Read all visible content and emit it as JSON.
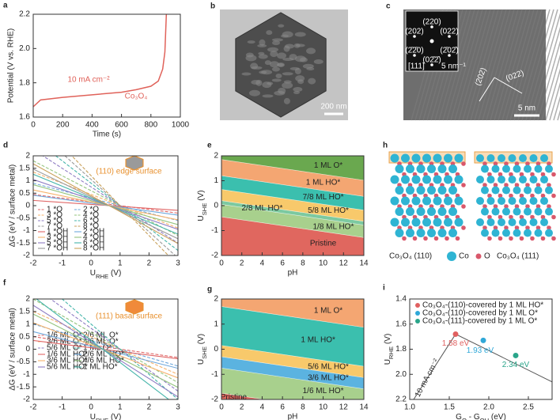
{
  "panel_labels": [
    "a",
    "b",
    "c",
    "d",
    "e",
    "f",
    "g",
    "h",
    "i"
  ],
  "images": {
    "b": {
      "scale_bar": "200 nm"
    },
    "c": {
      "zone_axis": "[111]",
      "inset_spots": [
        "(220)",
        "(022)",
        "(202)",
        "(2̄02̄)",
        "(02̄2̄)",
        "(2̄2̄0)"
      ],
      "inset_scale": "5 nm⁻¹",
      "planes": [
        "(202)",
        "(022)"
      ],
      "scale_bar": "5 nm"
    },
    "h": {
      "left_label": "Co₃O₄ (110)",
      "legend": [
        "Co",
        "O"
      ],
      "right_label": "Co₃O₄ (111)"
    }
  },
  "chart_data": [
    {
      "type": "line",
      "xlabel": "Time (s)",
      "ylabel": "Potential (V vs. RHE)",
      "x": [
        0,
        50,
        200,
        400,
        600,
        700,
        800,
        850,
        880,
        895,
        905
      ],
      "values": [
        1.66,
        1.7,
        1.715,
        1.73,
        1.745,
        1.76,
        1.78,
        1.81,
        1.88,
        1.98,
        2.2
      ],
      "color": "#e0625a",
      "xlim": [
        0,
        1000
      ],
      "ylim": [
        1.6,
        2.2
      ],
      "xticks": [
        0,
        200,
        400,
        600,
        800,
        1000
      ],
      "yticks": [
        1.6,
        1.8,
        {
          "value": 2,
          "label": "2.0"
        },
        2.2
      ],
      "annotations": [
        "10 mA cm⁻²",
        "Co₃O₄"
      ]
    },
    {
      "type": "multiline",
      "xlabel": [
        "U",
        "RHE",
        " (V)"
      ],
      "ylabel": "ΔG (eV / surface metal)",
      "annotations": [
        "(110) edge surface"
      ],
      "x": [
        -2,
        3
      ],
      "series": [
        {
          "name": "1 *O",
          "color": "#e06666",
          "style": "dashed",
          "values": [
            0.45,
            -0.3
          ]
        },
        {
          "name": "2 *O",
          "color": "#6fa8dc",
          "style": "dashed",
          "values": [
            0.9,
            -0.6
          ]
        },
        {
          "name": "3 *O",
          "color": "#f6b26b",
          "style": "dashed",
          "values": [
            1.35,
            -0.9
          ]
        },
        {
          "name": "4 *O",
          "color": "#93c47d",
          "style": "dashed",
          "values": [
            1.8,
            -1.2
          ]
        },
        {
          "name": "5 *O",
          "color": "#8e7cc3",
          "style": "dashed",
          "values": [
            2.25,
            -1.5
          ]
        },
        {
          "name": "6 *O",
          "color": "#45b5aa",
          "style": "dashed",
          "values": [
            2.7,
            -1.8
          ]
        },
        {
          "name": "7 *O",
          "color": "#999999",
          "style": "dashed",
          "values": [
            3.15,
            -2.1
          ]
        },
        {
          "name": "8 *O",
          "color": "#c9a15b",
          "style": "dashed",
          "values": [
            3.6,
            -2.4
          ]
        },
        {
          "name": "1 *OH",
          "color": "#e06666",
          "style": "solid",
          "values": [
            0.21,
            -0.19
          ]
        },
        {
          "name": "2 *OH",
          "color": "#6fa8dc",
          "style": "solid",
          "values": [
            0.42,
            -0.38
          ]
        },
        {
          "name": "3 *OH",
          "color": "#f6b26b",
          "style": "solid",
          "values": [
            0.63,
            -0.57
          ]
        },
        {
          "name": "4 *OH",
          "color": "#93c47d",
          "style": "solid",
          "values": [
            0.84,
            -0.76
          ]
        },
        {
          "name": "5 *OH",
          "color": "#8e7cc3",
          "style": "solid",
          "values": [
            1.05,
            -0.95
          ]
        },
        {
          "name": "6 *OH",
          "color": "#45b5aa",
          "style": "solid",
          "values": [
            1.26,
            -1.14
          ]
        },
        {
          "name": "7 *OH",
          "color": "#999999",
          "style": "solid",
          "values": [
            1.47,
            -1.33
          ]
        },
        {
          "name": "8 *OH",
          "color": "#c9a15b",
          "style": "solid",
          "values": [
            1.68,
            -1.52
          ]
        }
      ],
      "xlim": [
        -2,
        3
      ],
      "ylim": [
        -2,
        2
      ],
      "xticks": [
        -2,
        -1,
        0,
        1,
        2,
        3
      ],
      "yticks": [
        -2,
        -1.5,
        -1,
        -0.5,
        0,
        0.5,
        1,
        1.5,
        2
      ]
    },
    {
      "type": "phase",
      "xlabel": "pH",
      "ylabel": [
        "U",
        "SHE",
        " (V)"
      ],
      "x": [
        0,
        14
      ],
      "regions": [
        {
          "name": "Pristine",
          "color": "#e0675f"
        },
        {
          "name": "1/8 ML HO*",
          "color": "#a8d08d"
        },
        {
          "name": "2/8 ML HO*",
          "color": "#7cc9a0"
        },
        {
          "name": "5/8 ML HO*",
          "color": "#f8c96b"
        },
        {
          "name": "7/8 ML HO*",
          "color": "#3bbfae"
        },
        {
          "name": "1 ML HO*",
          "color": "#f4a672"
        },
        {
          "name": "1 ML O*",
          "color": "#6aa84f"
        }
      ],
      "boundaries": [
        [
          -0.45,
          -1.28
        ],
        [
          0.05,
          -0.78
        ],
        [
          0.2,
          -0.63
        ],
        [
          0.65,
          -0.18
        ],
        [
          1.2,
          0.37
        ],
        [
          1.85,
          1.02
        ]
      ],
      "xlim": [
        0,
        14
      ],
      "ylim": [
        -2,
        2
      ],
      "xticks": [
        0,
        2,
        4,
        6,
        8,
        10,
        12,
        14
      ],
      "yticks": [
        -2,
        -1,
        0,
        1,
        2
      ]
    },
    {
      "type": "multiline",
      "xlabel": [
        "U",
        "RHE",
        " (V)"
      ],
      "ylabel": "ΔG (eV / surface metal)",
      "annotations": [
        "(111) basal surface"
      ],
      "x": [
        -2,
        3
      ],
      "series": [
        {
          "name": "1/6 ML O*",
          "color": "#e06666",
          "style": "dashed",
          "values": [
            0.5,
            -0.33
          ]
        },
        {
          "name": "2/6 ML O*",
          "color": "#6fa8dc",
          "style": "dashed",
          "values": [
            1.0,
            -0.67
          ]
        },
        {
          "name": "3/6 ML O*",
          "color": "#f6b26b",
          "style": "dashed",
          "values": [
            1.5,
            -1.0
          ]
        },
        {
          "name": "4/6 ML O*",
          "color": "#93c47d",
          "style": "dashed",
          "values": [
            2.0,
            -1.33
          ]
        },
        {
          "name": "5/6 ML O*",
          "color": "#8e7cc3",
          "style": "dashed",
          "values": [
            2.5,
            -1.67
          ]
        },
        {
          "name": "1 ML O*",
          "color": "#45b5aa",
          "style": "dashed",
          "values": [
            3.0,
            -2.0
          ]
        },
        {
          "name": "1/6 ML HO*",
          "color": "#e06666",
          "style": "solid",
          "values": [
            0.35,
            -0.38
          ]
        },
        {
          "name": "2/6 ML HO*",
          "color": "#6fa8dc",
          "style": "solid",
          "values": [
            0.7,
            -0.76
          ]
        },
        {
          "name": "3/6 ML HO*",
          "color": "#f6b26b",
          "style": "solid",
          "values": [
            1.05,
            -1.14
          ]
        },
        {
          "name": "4/6 ML HO*",
          "color": "#93c47d",
          "style": "solid",
          "values": [
            1.4,
            -1.52
          ]
        },
        {
          "name": "5/6 ML HO*",
          "color": "#8e7cc3",
          "style": "solid",
          "values": [
            1.75,
            -1.9
          ]
        },
        {
          "name": "1 ML HO*",
          "color": "#45b5aa",
          "style": "solid",
          "values": [
            2.1,
            -2.28
          ]
        }
      ],
      "xlim": [
        -2,
        3
      ],
      "ylim": [
        -2,
        2
      ],
      "xticks": [
        -2,
        -1,
        0,
        1,
        2,
        3
      ],
      "yticks": [
        -2,
        -1.5,
        -1,
        -0.5,
        0,
        0.5,
        1,
        1.5,
        2
      ]
    },
    {
      "type": "phase",
      "xlabel": "pH",
      "ylabel": [
        "U",
        "SHE",
        " (V)"
      ],
      "x": [
        0,
        14
      ],
      "regions": [
        {
          "name": "Pristine",
          "color": "#e0675f"
        },
        {
          "name": "1/6 ML HO*",
          "color": "#a8d08d"
        },
        {
          "name": "3/6 ML HO*",
          "color": "#5bb3e0"
        },
        {
          "name": "5/6 ML HO*",
          "color": "#f8c96b"
        },
        {
          "name": "1 ML HO*",
          "color": "#3bbfae"
        },
        {
          "name": "1 ML O*",
          "color": "#f4a672"
        }
      ],
      "boundaries": [
        [
          -1.75,
          -2.58
        ],
        [
          -0.75,
          -1.58
        ],
        [
          -0.3,
          -1.13
        ],
        [
          0.15,
          -0.68
        ],
        [
          1.7,
          0.87
        ]
      ],
      "xlim": [
        0,
        14
      ],
      "ylim": [
        -2,
        2
      ],
      "xticks": [
        0,
        2,
        4,
        6,
        8,
        10,
        12,
        14
      ],
      "yticks": [
        -2,
        -1,
        0,
        1,
        2
      ]
    },
    {
      "type": "volcano",
      "xlabel": [
        "G",
        "O",
        " - G",
        "OH",
        " (eV)"
      ],
      "ylabel": [
        "U",
        "RHE",
        " (V)"
      ],
      "annotations": [
        "10 mA cm⁻²"
      ],
      "x": [
        1.05,
        1.58,
        2.8
      ],
      "values": [
        2.2,
        1.68,
        2.06
      ],
      "color": "#555555",
      "points": {
        "names": [
          "Co₃O₄-(110)-covered by 1 ML HO*",
          "Co₃O₄-(110)-covered by 1 ML O*",
          "Co₃O₄-(111)-covered by 1 ML O*"
        ],
        "colors": [
          "#e06060",
          "#2fa8d8",
          "#2aa58a"
        ],
        "x": [
          1.58,
          1.93,
          2.34
        ],
        "values": [
          1.68,
          1.73,
          1.85
        ],
        "x_labels": [
          "1.58 eV",
          "1.93 eV",
          "2.34 eV"
        ]
      },
      "xlim": [
        1.0,
        2.8
      ],
      "ylim": [
        2.2,
        1.4
      ],
      "xticks": [
        {
          "value": 1,
          "label": "1.0"
        },
        1.5,
        {
          "value": 2,
          "label": "2.0"
        },
        2.5
      ],
      "yticks": [
        1.4,
        1.6,
        1.8,
        {
          "value": 2,
          "label": "2.0"
        },
        2.2
      ]
    }
  ]
}
